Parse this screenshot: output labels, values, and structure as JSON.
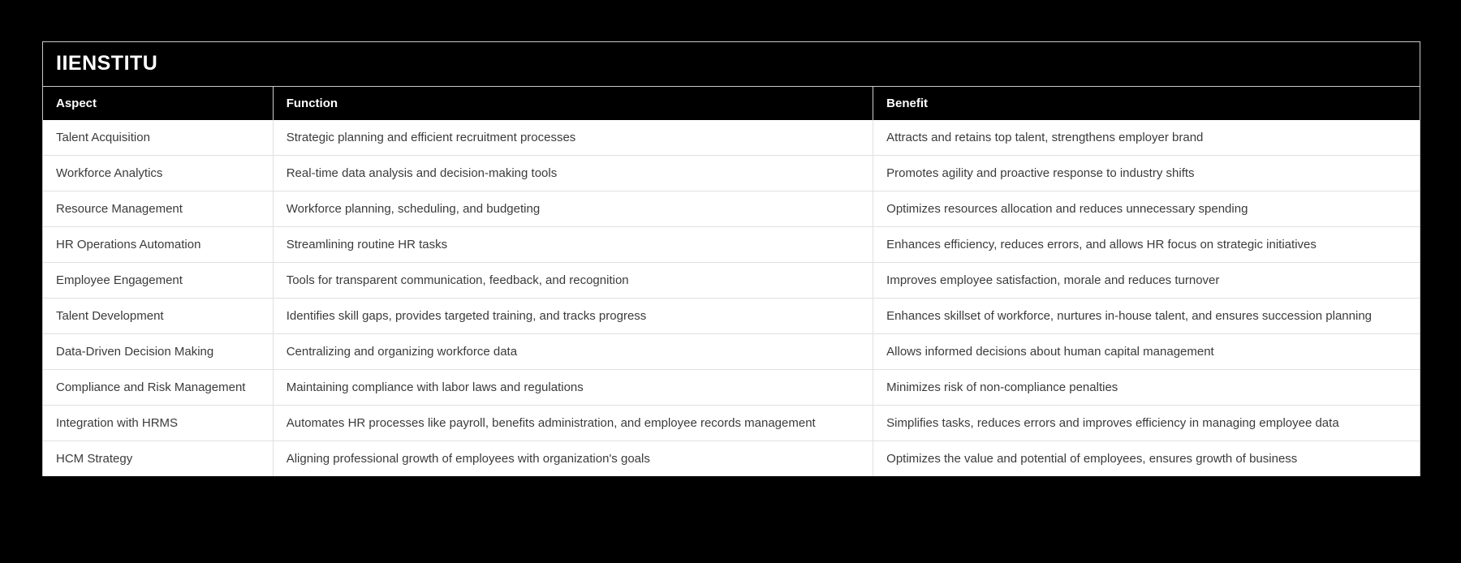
{
  "page": {
    "background_color": "#000000",
    "card_border_color": "#c9c9c9",
    "header_bg_color": "#000000",
    "header_text_color": "#ffffff",
    "row_bg_color": "#ffffff",
    "row_text_color": "#3b3b3b",
    "divider_color": "#e0e0e0"
  },
  "header": {
    "title": "IIENSTITU"
  },
  "chart_data": {
    "type": "table",
    "title": "IIENSTITU",
    "columns": [
      "Aspect",
      "Function",
      "Benefit"
    ],
    "rows": [
      {
        "aspect": "Talent Acquisition",
        "function": "Strategic planning and efficient recruitment processes",
        "benefit": "Attracts and retains top talent, strengthens employer brand"
      },
      {
        "aspect": "Workforce Analytics",
        "function": "Real-time data analysis and decision-making tools",
        "benefit": "Promotes agility and proactive response to industry shifts"
      },
      {
        "aspect": "Resource Management",
        "function": "Workforce planning, scheduling, and budgeting",
        "benefit": "Optimizes resources allocation and reduces unnecessary spending"
      },
      {
        "aspect": "HR Operations Automation",
        "function": "Streamlining routine HR tasks",
        "benefit": "Enhances efficiency, reduces errors, and allows HR focus on strategic initiatives"
      },
      {
        "aspect": "Employee Engagement",
        "function": "Tools for transparent communication, feedback, and recognition",
        "benefit": "Improves employee satisfaction, morale and reduces turnover"
      },
      {
        "aspect": "Talent Development",
        "function": "Identifies skill gaps, provides targeted training, and tracks progress",
        "benefit": "Enhances skillset of workforce, nurtures in-house talent, and ensures succession planning"
      },
      {
        "aspect": "Data-Driven Decision Making",
        "function": "Centralizing and organizing workforce data",
        "benefit": "Allows informed decisions about human capital management"
      },
      {
        "aspect": "Compliance and Risk Management",
        "function": "Maintaining compliance with labor laws and regulations",
        "benefit": "Minimizes risk of non-compliance penalties"
      },
      {
        "aspect": "Integration with HRMS",
        "function": "Automates HR processes like payroll, benefits administration, and employee records management",
        "benefit": "Simplifies tasks, reduces errors and improves efficiency in managing employee data"
      },
      {
        "aspect": "HCM Strategy",
        "function": "Aligning professional growth of employees with organization's goals",
        "benefit": "Optimizes the value and potential of employees, ensures growth of business"
      }
    ]
  }
}
